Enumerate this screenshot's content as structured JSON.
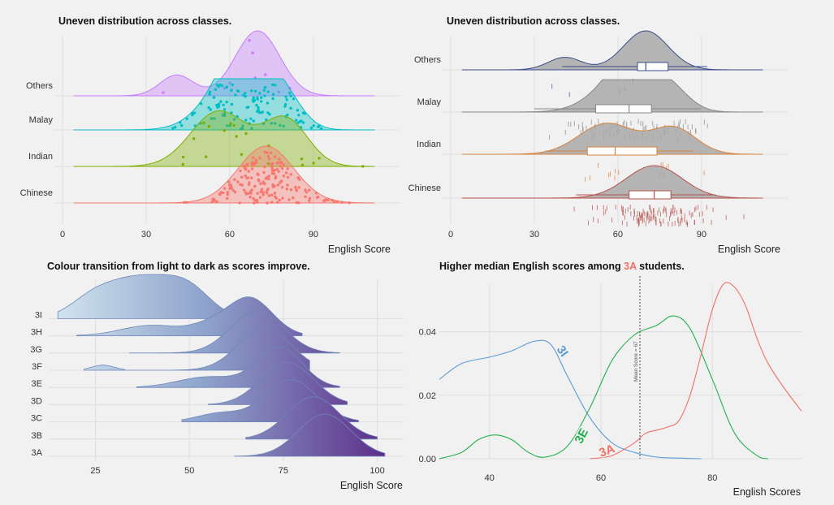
{
  "colors": {
    "chinese": "#f8766d",
    "indian": "#7cae00",
    "malay": "#00bfc4",
    "others": "#c77cff",
    "outline_grey": "#a9a9a9",
    "ridge_light": "#cfe3ee",
    "ridge_dark": "#5d2f8a",
    "line_3I": "#5b9bd5",
    "line_3E": "#22b14c",
    "line_3A": "#f07064"
  },
  "panels": {
    "p1": {
      "title": "Uneven distribution across classes.",
      "xlabel": "English Score"
    },
    "p2": {
      "title": "Uneven distribution across classes.",
      "xlabel": "English Score"
    },
    "p3": {
      "title": "Colour transition from light to dark as scores improve.",
      "xlabel": "English Score"
    },
    "p4": {
      "title_pre": "Higher median English scores among ",
      "title_hl": "3A",
      "title_post": " students.",
      "xlabel": "English Scores",
      "mean_label": "Mean Score = 67"
    }
  },
  "chart_data": [
    {
      "type": "area",
      "title": "Uneven distribution across classes.",
      "xlabel": "English Score",
      "categories": [
        "Chinese",
        "Indian",
        "Malay",
        "Others"
      ],
      "xticks": [
        0,
        30,
        60,
        90
      ],
      "xlim": [
        0,
        118
      ],
      "series": [
        {
          "name": "Others",
          "peaks": [
            [
              41,
              0.32
            ],
            [
              70,
              1.0
            ]
          ],
          "range": [
            4,
            112
          ]
        },
        {
          "name": "Malay",
          "peaks": [
            [
              60,
              0.85
            ],
            [
              65,
              1.0
            ],
            [
              78,
              0.8
            ]
          ],
          "range": [
            4,
            112
          ]
        },
        {
          "name": "Indian",
          "peaks": [
            [
              56,
              1.0
            ],
            [
              80,
              0.85
            ]
          ],
          "range": [
            4,
            112
          ]
        },
        {
          "name": "Chinese",
          "peaks": [
            [
              73,
              1.0
            ]
          ],
          "range": [
            4,
            112
          ]
        }
      ]
    },
    {
      "type": "area",
      "title": "Uneven distribution across classes.",
      "xlabel": "English Score",
      "categories": [
        "Chinese",
        "Indian",
        "Malay",
        "Others"
      ],
      "xticks": [
        0,
        30,
        60,
        90
      ],
      "xlim": [
        0,
        118
      ],
      "boxplots": [
        {
          "name": "Others",
          "min": 40,
          "q1": 67,
          "median": 70,
          "q3": 78,
          "max": 92
        },
        {
          "name": "Malay",
          "min": 30,
          "q1": 52,
          "median": 64,
          "q3": 72,
          "max": 90
        },
        {
          "name": "Indian",
          "min": 34,
          "q1": 49,
          "median": 59,
          "q3": 74,
          "max": 87
        },
        {
          "name": "Chinese",
          "min": 45,
          "q1": 64,
          "median": 73,
          "q3": 79,
          "max": 95
        }
      ]
    },
    {
      "type": "area",
      "title": "Colour transition from light to dark as scores improve.",
      "xlabel": "English Score",
      "categories": [
        "3A",
        "3B",
        "3C",
        "3D",
        "3E",
        "3F",
        "3G",
        "3H",
        "3I"
      ],
      "xticks": [
        25,
        50,
        75,
        100
      ],
      "xlim": [
        13,
        107
      ],
      "series": [
        {
          "name": "3A",
          "peak": 86,
          "range": [
            62,
            102
          ]
        },
        {
          "name": "3B",
          "peak": 83,
          "range": [
            65,
            100
          ]
        },
        {
          "name": "3C",
          "peak": 77,
          "range": [
            48,
            95
          ]
        },
        {
          "name": "3D",
          "peak": 76,
          "range": [
            55,
            92
          ]
        },
        {
          "name": "3E",
          "peak": 74,
          "range": [
            36,
            90
          ]
        },
        {
          "name": "3F",
          "peak": 70,
          "range": [
            22,
            82
          ]
        },
        {
          "name": "3G",
          "peak": 68,
          "range": [
            34,
            90
          ]
        },
        {
          "name": "3H",
          "peak": 66,
          "range": [
            20,
            80
          ]
        },
        {
          "name": "3I",
          "peak": 37,
          "range": [
            15,
            72
          ]
        }
      ]
    },
    {
      "type": "line",
      "title": "Higher median English scores among 3A students.",
      "xlabel": "English Scores",
      "xticks": [
        40,
        60,
        80
      ],
      "yticks": [
        0.0,
        0.02,
        0.04
      ],
      "xlim": [
        31,
        96
      ],
      "ylim": [
        0,
        0.055
      ],
      "mean_score": 67,
      "series": [
        {
          "name": "3I",
          "x": [
            31,
            35,
            40,
            44,
            48,
            51,
            54,
            58,
            62,
            66,
            70,
            74,
            78
          ],
          "y": [
            0.025,
            0.03,
            0.032,
            0.034,
            0.037,
            0.036,
            0.026,
            0.013,
            0.005,
            0.002,
            0.0005,
            0.0002,
            0.0
          ]
        },
        {
          "name": "3E",
          "x": [
            31,
            35,
            38,
            41,
            44,
            47,
            50,
            54,
            58,
            62,
            66,
            70,
            73,
            76,
            80,
            84,
            88,
            90
          ],
          "y": [
            0.0,
            0.002,
            0.006,
            0.0075,
            0.006,
            0.002,
            0.0005,
            0.004,
            0.016,
            0.031,
            0.039,
            0.042,
            0.045,
            0.041,
            0.025,
            0.008,
            0.001,
            0.0
          ]
        },
        {
          "name": "3A",
          "x": [
            58,
            62,
            66,
            68,
            70,
            72,
            74,
            76,
            78,
            80,
            82,
            84,
            86,
            88,
            90,
            93,
            96
          ],
          "y": [
            0.0,
            0.001,
            0.005,
            0.008,
            0.009,
            0.01,
            0.012,
            0.02,
            0.033,
            0.047,
            0.055,
            0.054,
            0.048,
            0.038,
            0.03,
            0.022,
            0.015
          ]
        }
      ]
    }
  ]
}
